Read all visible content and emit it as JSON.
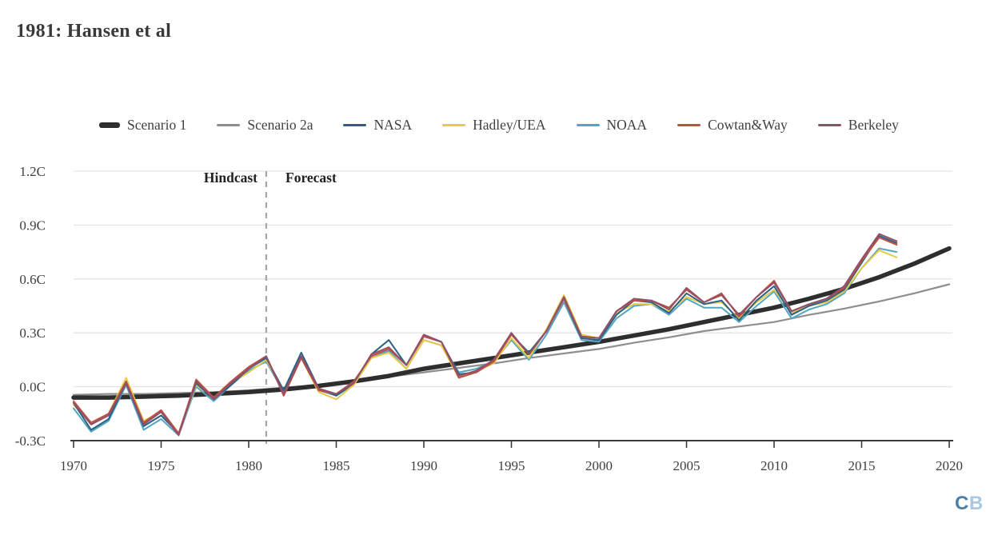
{
  "header": {
    "title": "1981: Hansen et al"
  },
  "annotations": {
    "hindcast": "Hindcast",
    "forecast": "Forecast"
  },
  "watermark": {
    "c": "C",
    "b": "B"
  },
  "colors": {
    "scenario1": "#2e2e2e",
    "scenario2a": "#8e8e8e",
    "nasa": "#2a6186",
    "hadley": "#e6cb4a",
    "noaa": "#54a5c2",
    "cowtan_way": "#bf4f41",
    "berkeley": "#924f68",
    "grid": "#e4e4e4",
    "axis": "#3a3a3a",
    "divider": "#a6a6a6"
  },
  "chart_data": {
    "type": "line",
    "title": "1981: Hansen et al",
    "xlabel": "",
    "ylabel": "",
    "grid": true,
    "legend_position": "top",
    "x_axis": {
      "min": 1970,
      "max": 2020,
      "ticks": [
        1970,
        1975,
        1980,
        1985,
        1990,
        1995,
        2000,
        2005,
        2010,
        2015,
        2020
      ],
      "tick_labels": [
        "1970",
        "1975",
        "1980",
        "1985",
        "1990",
        "1995",
        "2000",
        "2005",
        "2010",
        "2015",
        "2020"
      ]
    },
    "y_axis": {
      "min": -0.3,
      "max": 1.2,
      "ticks": [
        -0.3,
        0.0,
        0.3,
        0.6,
        0.9,
        1.2
      ],
      "tick_labels": [
        "-0.3C",
        "0.0C",
        "0.3C",
        "0.6C",
        "0.9C",
        "1.2C"
      ]
    },
    "forecast_divider_year": 1981,
    "series": [
      {
        "name": "Scenario 1",
        "color": "#2e2e2e",
        "width": 5.5,
        "years": [
          1970,
          1972,
          1974,
          1976,
          1978,
          1980,
          1982,
          1984,
          1986,
          1988,
          1990,
          1992,
          1994,
          1996,
          1998,
          2000,
          2002,
          2004,
          2006,
          2008,
          2010,
          2012,
          2014,
          2016,
          2018,
          2020
        ],
        "values": [
          -0.06,
          -0.06,
          -0.055,
          -0.05,
          -0.04,
          -0.03,
          -0.015,
          0.005,
          0.03,
          0.06,
          0.1,
          0.13,
          0.16,
          0.19,
          0.22,
          0.25,
          0.285,
          0.32,
          0.36,
          0.4,
          0.44,
          0.49,
          0.545,
          0.61,
          0.685,
          0.77
        ]
      },
      {
        "name": "Scenario 2a",
        "color": "#8e8e8e",
        "width": 2.2,
        "years": [
          1970,
          1972,
          1974,
          1976,
          1978,
          1980,
          1982,
          1984,
          1986,
          1988,
          1990,
          1992,
          1994,
          1996,
          1998,
          2000,
          2002,
          2004,
          2006,
          2008,
          2010,
          2012,
          2014,
          2016,
          2018,
          2020
        ],
        "values": [
          -0.045,
          -0.04,
          -0.04,
          -0.035,
          -0.03,
          -0.02,
          -0.005,
          0.01,
          0.035,
          0.055,
          0.08,
          0.105,
          0.13,
          0.16,
          0.185,
          0.21,
          0.245,
          0.275,
          0.31,
          0.335,
          0.36,
          0.4,
          0.435,
          0.475,
          0.52,
          0.57
        ]
      },
      {
        "name": "NASA",
        "color": "#2a6186",
        "width": 2,
        "years": [
          1970,
          1971,
          1972,
          1973,
          1974,
          1975,
          1976,
          1977,
          1978,
          1979,
          1980,
          1981,
          1982,
          1983,
          1984,
          1985,
          1986,
          1987,
          1988,
          1989,
          1990,
          1991,
          1992,
          1993,
          1994,
          1995,
          1996,
          1997,
          1998,
          1999,
          2000,
          2001,
          2002,
          2003,
          2004,
          2005,
          2006,
          2007,
          2008,
          2009,
          2010,
          2011,
          2012,
          2013,
          2014,
          2015,
          2016,
          2017
        ],
        "values": [
          -0.09,
          -0.24,
          -0.18,
          0.02,
          -0.22,
          -0.16,
          -0.26,
          0.02,
          -0.07,
          0.01,
          0.1,
          0.16,
          -0.02,
          0.19,
          -0.01,
          -0.05,
          0.02,
          0.18,
          0.26,
          0.12,
          0.28,
          0.25,
          0.07,
          0.08,
          0.15,
          0.29,
          0.19,
          0.31,
          0.49,
          0.27,
          0.26,
          0.4,
          0.48,
          0.47,
          0.41,
          0.52,
          0.46,
          0.48,
          0.37,
          0.48,
          0.56,
          0.4,
          0.45,
          0.48,
          0.54,
          0.69,
          0.84,
          0.8
        ]
      },
      {
        "name": "Hadley/UEA",
        "color": "#e6cb4a",
        "width": 2,
        "years": [
          1970,
          1971,
          1972,
          1973,
          1974,
          1975,
          1976,
          1977,
          1978,
          1979,
          1980,
          1981,
          1982,
          1983,
          1984,
          1985,
          1986,
          1987,
          1988,
          1989,
          1990,
          1991,
          1992,
          1993,
          1994,
          1995,
          1996,
          1997,
          1998,
          1999,
          2000,
          2001,
          2002,
          2003,
          2004,
          2005,
          2006,
          2007,
          2008,
          2009,
          2010,
          2011,
          2012,
          2013,
          2014,
          2015,
          2016,
          2017
        ],
        "values": [
          -0.1,
          -0.21,
          -0.15,
          0.05,
          -0.19,
          -0.14,
          -0.26,
          0.01,
          -0.06,
          0.02,
          0.08,
          0.15,
          -0.02,
          0.16,
          -0.03,
          -0.07,
          0.01,
          0.16,
          0.19,
          0.1,
          0.26,
          0.23,
          0.05,
          0.09,
          0.13,
          0.27,
          0.16,
          0.32,
          0.51,
          0.29,
          0.27,
          0.41,
          0.46,
          0.46,
          0.42,
          0.5,
          0.46,
          0.47,
          0.38,
          0.47,
          0.54,
          0.41,
          0.45,
          0.47,
          0.53,
          0.66,
          0.76,
          0.72
        ]
      },
      {
        "name": "NOAA",
        "color": "#54a5c2",
        "width": 2,
        "years": [
          1970,
          1971,
          1972,
          1973,
          1974,
          1975,
          1976,
          1977,
          1978,
          1979,
          1980,
          1981,
          1982,
          1983,
          1984,
          1985,
          1986,
          1987,
          1988,
          1989,
          1990,
          1991,
          1992,
          1993,
          1994,
          1995,
          1996,
          1997,
          1998,
          1999,
          2000,
          2001,
          2002,
          2003,
          2004,
          2005,
          2006,
          2007,
          2008,
          2009,
          2010,
          2011,
          2012,
          2013,
          2014,
          2015,
          2016,
          2017
        ],
        "values": [
          -0.12,
          -0.25,
          -0.19,
          0.01,
          -0.24,
          -0.18,
          -0.27,
          0.0,
          -0.08,
          0.01,
          0.09,
          0.14,
          -0.03,
          0.17,
          -0.02,
          -0.05,
          0.01,
          0.16,
          0.2,
          0.1,
          0.26,
          0.23,
          0.08,
          0.1,
          0.14,
          0.26,
          0.15,
          0.29,
          0.47,
          0.26,
          0.25,
          0.38,
          0.45,
          0.46,
          0.4,
          0.49,
          0.44,
          0.44,
          0.36,
          0.45,
          0.53,
          0.38,
          0.43,
          0.46,
          0.52,
          0.66,
          0.77,
          0.75
        ]
      },
      {
        "name": "Cowtan&Way",
        "color": "#bf4f41",
        "width": 2,
        "years": [
          1970,
          1971,
          1972,
          1973,
          1974,
          1975,
          1976,
          1977,
          1978,
          1979,
          1980,
          1981,
          1982,
          1983,
          1984,
          1985,
          1986,
          1987,
          1988,
          1989,
          1990,
          1991,
          1992,
          1993,
          1994,
          1995,
          1996,
          1997,
          1998,
          1999,
          2000,
          2001,
          2002,
          2003,
          2004,
          2005,
          2006,
          2007,
          2008,
          2009,
          2010,
          2011,
          2012,
          2013,
          2014,
          2015,
          2016,
          2017
        ],
        "values": [
          -0.08,
          -0.2,
          -0.15,
          0.03,
          -0.2,
          -0.13,
          -0.26,
          0.04,
          -0.06,
          0.03,
          0.11,
          0.17,
          -0.05,
          0.16,
          -0.02,
          -0.04,
          0.03,
          0.17,
          0.21,
          0.12,
          0.28,
          0.25,
          0.05,
          0.08,
          0.14,
          0.29,
          0.18,
          0.31,
          0.49,
          0.28,
          0.27,
          0.42,
          0.48,
          0.48,
          0.44,
          0.54,
          0.47,
          0.52,
          0.39,
          0.5,
          0.59,
          0.42,
          0.46,
          0.49,
          0.55,
          0.7,
          0.83,
          0.79
        ]
      },
      {
        "name": "Berkeley",
        "color": "#924f68",
        "width": 2,
        "years": [
          1970,
          1971,
          1972,
          1973,
          1974,
          1975,
          1976,
          1977,
          1978,
          1979,
          1980,
          1981,
          1982,
          1983,
          1984,
          1985,
          1986,
          1987,
          1988,
          1989,
          1990,
          1991,
          1992,
          1993,
          1994,
          1995,
          1996,
          1997,
          1998,
          1999,
          2000,
          2001,
          2002,
          2003,
          2004,
          2005,
          2006,
          2007,
          2008,
          2009,
          2010,
          2011,
          2012,
          2013,
          2014,
          2015,
          2016,
          2017
        ],
        "values": [
          -0.09,
          -0.21,
          -0.16,
          0.02,
          -0.21,
          -0.14,
          -0.27,
          0.03,
          -0.07,
          0.02,
          0.1,
          0.17,
          -0.04,
          0.17,
          -0.01,
          -0.04,
          0.02,
          0.18,
          0.22,
          0.12,
          0.29,
          0.25,
          0.06,
          0.09,
          0.15,
          0.3,
          0.18,
          0.31,
          0.5,
          0.28,
          0.27,
          0.42,
          0.49,
          0.48,
          0.43,
          0.55,
          0.47,
          0.51,
          0.4,
          0.5,
          0.58,
          0.42,
          0.46,
          0.49,
          0.56,
          0.71,
          0.85,
          0.81
        ]
      }
    ]
  }
}
